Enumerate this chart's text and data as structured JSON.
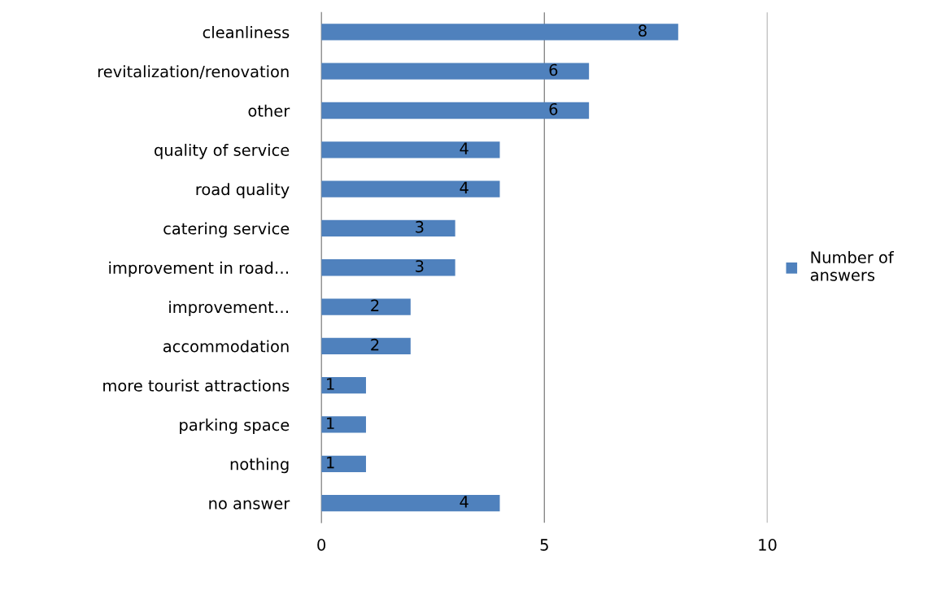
{
  "chart_data": {
    "type": "bar",
    "orientation": "horizontal",
    "categories": [
      "cleanliness",
      "revitalization/renovation",
      "other",
      "quality of service",
      "road quality",
      "catering service",
      "improvement in road…",
      "improvement…",
      "accommodation",
      "more tourist attractions",
      "parking space",
      "nothing",
      "no answer"
    ],
    "series": [
      {
        "name": "Number of answers",
        "color": "#4f81bd",
        "values": [
          8,
          6,
          6,
          4,
          4,
          3,
          3,
          2,
          2,
          1,
          1,
          1,
          4
        ]
      }
    ],
    "xlim": [
      0,
      10
    ],
    "xticks": [
      0,
      5,
      10
    ],
    "grid": "x",
    "legend": "right",
    "data_labels": true
  }
}
